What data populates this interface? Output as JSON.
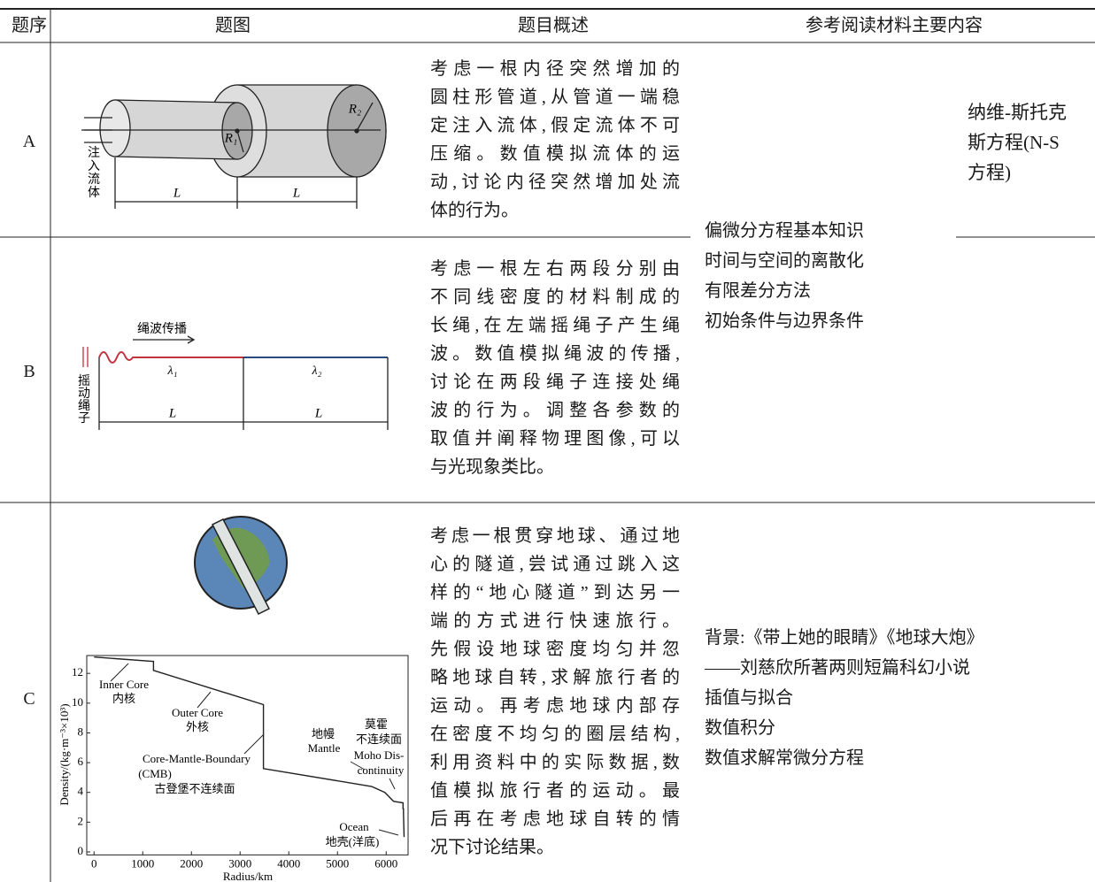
{
  "table": {
    "header": [
      "题序",
      "题图",
      "题目概述",
      "参考阅读材料主要内容"
    ],
    "rows": [
      {
        "label": "A",
        "summary": [
          "考虑一根内径突然增加的",
          "圆柱形管道,从管道一端稳",
          "定注入流体,假定流体不可",
          "压缩。数值模拟流体的运",
          "动,讨论内径突然增加处流",
          "体的行为。"
        ],
        "figure": {
          "inlet_label": "注入流体",
          "length_labels": [
            "L",
            "L"
          ],
          "radius_labels": [
            "R₁",
            "R₂"
          ]
        }
      },
      {
        "label": "B",
        "summary": [
          "考虑一根左右两段分别由",
          "不同线密度的材料制成的",
          "长绳,在左端摇绳子产生绳",
          "波。数值模拟绳波的传播,",
          "讨论在两段绳子连接处绳",
          "波的行为。调整各参数的",
          "取值并阐释物理图像,可以",
          "与光现象类比。"
        ],
        "figure": {
          "wave_label": "绳波传播",
          "density_labels": [
            "λ₁",
            "λ₂"
          ],
          "shake_label": "摇动绳子",
          "length_labels": [
            "L",
            "L"
          ]
        }
      },
      {
        "label": "C",
        "summary": [
          "考虑一根贯穿地球、通过地",
          "心的隧道,尝试通过跳入这",
          "样的“地心隧道”到达另一",
          "端的方式进行快速旅行。",
          "先假设地球密度均匀并忽",
          "略地球自转,求解旅行者的",
          "运动。再考虑地球内部存",
          "在密度不均匀的圈层结构,",
          "利用资料中的实际数据,数",
          "值模拟旅行者的运动。最",
          "后再在考虑地球自转的情",
          "况下讨论结果。"
        ],
        "reading": [
          "背景:《带上她的眼睛》《地球大炮》",
          "——刘慈欣所著两则短篇科幻小说",
          "插值与拟合",
          "数值积分",
          "数值求解常微分方程"
        ],
        "figure": {
          "chart": {
            "type": "line",
            "x_label": "Radius/km",
            "y_label": "Density/(kg·m⁻³×10³)",
            "x": [
              0,
              1220,
              1220,
              3480,
              3480,
              5701,
              5701,
              5971,
              6151,
              6346,
              6346,
              6356,
              6356,
              6368
            ],
            "values": [
              13.1,
              12.8,
              12.2,
              9.9,
              5.6,
              4.4,
              4.4,
              4.0,
              3.4,
              3.3,
              2.9,
              2.9,
              2.6,
              1.0
            ],
            "xlim": [
              -150,
              6450
            ],
            "ylim": [
              -0.2,
              13.2
            ],
            "xticks": [
              0,
              1000,
              2000,
              3000,
              4000,
              5000,
              6000
            ],
            "yticks": [
              0,
              2,
              4,
              6,
              8,
              10,
              12
            ],
            "annotations": [
              "Inner Core",
              "内核",
              "Outer  Core",
              "外核",
              "Core-Mantle-Boundary",
              "(CMB)",
              "古登堡不连续面",
              "地幔",
              "Mantle",
              "莫霍",
              "不连续面",
              "Moho Dis-",
              "continuity",
              "Ocean",
              "地壳(洋底)"
            ]
          }
        }
      }
    ],
    "shared_reading": [
      "偏微分方程基本知识",
      "时间与空间的离散化",
      "有限差分方法",
      "初始条件与边界条件"
    ],
    "ns_note": [
      "纳维-斯托克",
      "斯方程(N-S",
      "方程)"
    ]
  }
}
